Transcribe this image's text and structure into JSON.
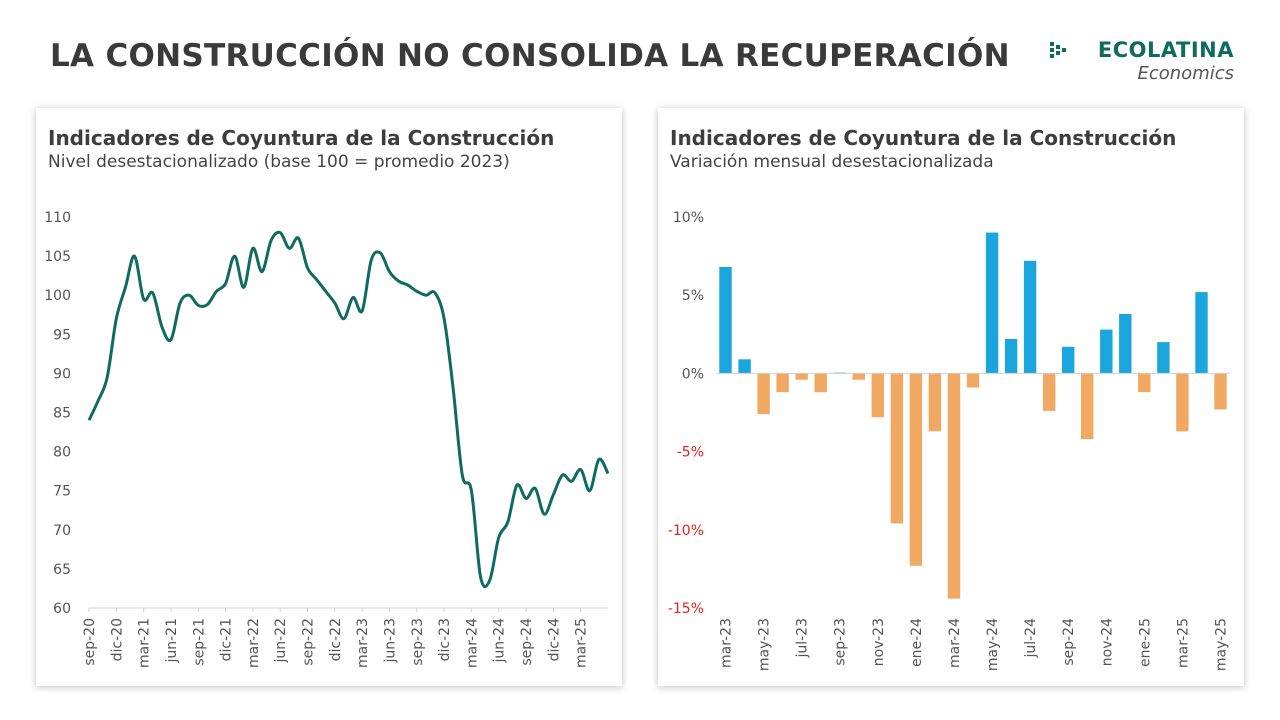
{
  "header": {
    "title": "LA CONSTRUCCIÓN NO CONSOLIDA LA RECUPERACIÓN"
  },
  "logo": {
    "name": "ECOLATINA",
    "sub": "Economics",
    "color": "#0e6b5e"
  },
  "chart_data": [
    {
      "type": "line",
      "title": "Indicadores de Coyuntura de la Construcción",
      "subtitle": "Nivel desestacionalizado (base 100 = promedio 2023)",
      "ylim": [
        60,
        110
      ],
      "yticks": [
        60,
        65,
        70,
        75,
        80,
        85,
        90,
        95,
        100,
        105,
        110
      ],
      "tick_labels": [
        "sep-20",
        "dic-20",
        "mar-21",
        "jun-21",
        "sep-21",
        "dic-21",
        "mar-22",
        "jun-22",
        "sep-22",
        "dic-22",
        "mar-23",
        "jun-23",
        "sep-23",
        "dic-23",
        "mar-24",
        "jun-24",
        "sep-24",
        "dic-24",
        "mar-25"
      ],
      "color": "#0e6b5e",
      "grid": false,
      "series": [
        {
          "values": [
            84,
            86.5,
            89.5,
            97,
            101,
            105,
            99.5,
            100.3,
            96,
            94.3,
            99,
            100,
            98.7,
            98.8,
            100.5,
            101.5,
            105,
            101,
            106,
            103,
            107,
            108,
            106,
            107.3,
            103.5,
            102,
            100.5,
            99,
            97,
            99.7,
            98,
            104.5,
            105.4,
            103,
            101.8,
            101.3,
            100.5,
            100,
            100.3,
            97,
            88,
            77,
            75,
            64,
            63.5,
            69,
            71,
            75.7,
            74,
            75.3,
            72,
            74.5,
            77,
            76.2,
            77.7,
            75,
            79,
            77.2
          ]
        }
      ]
    },
    {
      "type": "bar",
      "title": "Indicadores de Coyuntura de la Construcción",
      "subtitle": "Variación mensual desestacionalizada",
      "ylim": [
        -15,
        10
      ],
      "yticks": [
        -15,
        -10,
        -5,
        0,
        5,
        10
      ],
      "ytick_labels": [
        "-15%",
        "-10%",
        "-5%",
        "0%",
        "5%",
        "10%"
      ],
      "positive_color": "#1aa6dd",
      "negative_color": "#f0a862",
      "negative_label_color": "#e02020",
      "tick_labels": [
        "mar-23",
        "may-23",
        "jul-23",
        "sep-23",
        "nov-23",
        "ene-24",
        "mar-24",
        "may-24",
        "jul-24",
        "sep-24",
        "nov-24",
        "ene-25",
        "mar-25",
        "may-25"
      ],
      "values": [
        6.8,
        0.9,
        -2.6,
        -1.2,
        -0.4,
        -1.2,
        0.05,
        -0.4,
        -2.8,
        -9.6,
        -12.3,
        -3.7,
        -14.4,
        -0.9,
        9.0,
        2.2,
        7.2,
        -2.4,
        1.7,
        -4.2,
        2.8,
        3.8,
        -1.2,
        2.0,
        -3.7,
        5.2,
        -2.3
      ]
    }
  ]
}
